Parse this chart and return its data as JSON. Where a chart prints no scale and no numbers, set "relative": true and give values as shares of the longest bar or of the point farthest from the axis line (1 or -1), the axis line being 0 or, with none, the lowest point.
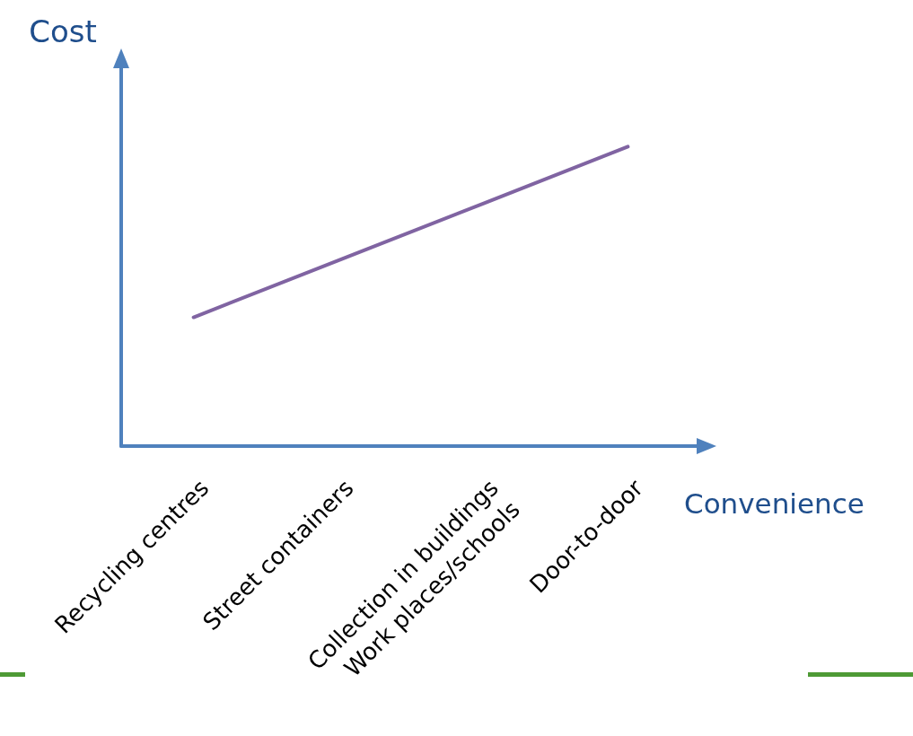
{
  "chart_data": {
    "type": "line",
    "relative": true,
    "xlabel": "Convenience",
    "ylabel": "Cost",
    "categories": [
      "Recycling centres",
      "Street containers",
      "Collection in buildings\nWork places/schools",
      "Door-to-door"
    ],
    "series": [
      {
        "color": "#8064a2",
        "values": [
          0.43,
          0.62,
          0.81,
          1
        ]
      }
    ],
    "marker": "none",
    "grid": false
  }
}
